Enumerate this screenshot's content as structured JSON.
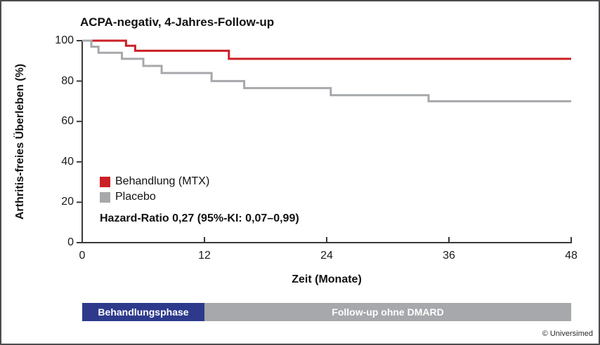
{
  "chart_data": {
    "type": "line",
    "subtype": "kaplan-meier-step",
    "title": "ACPA-negativ, 4-Jahres-Follow-up",
    "xlabel": "Zeit (Monate)",
    "ylabel": "Arthritis-freies Überleben (%)",
    "xlim": [
      0,
      48
    ],
    "ylim": [
      0,
      100
    ],
    "xticks": [
      0,
      12,
      24,
      36,
      48
    ],
    "yticks": [
      0,
      20,
      40,
      60,
      80,
      100
    ],
    "grid": false,
    "legend_position": "inside-left",
    "series": [
      {
        "name": "Behandlung (MTX)",
        "color": "#cb2026",
        "points": [
          [
            0,
            100
          ],
          [
            4.3,
            97.5
          ],
          [
            5.2,
            95
          ],
          [
            14.4,
            91
          ],
          [
            48,
            91
          ]
        ]
      },
      {
        "name": "Placebo",
        "color": "#a6a8ab",
        "points": [
          [
            0,
            100
          ],
          [
            0.9,
            97
          ],
          [
            1.6,
            94
          ],
          [
            3.9,
            91
          ],
          [
            6,
            87.5
          ],
          [
            7.8,
            84
          ],
          [
            12.7,
            80
          ],
          [
            15.9,
            76.5
          ],
          [
            24.4,
            73
          ],
          [
            34,
            70
          ],
          [
            48,
            70
          ]
        ]
      }
    ],
    "annotation": "Hazard-Ratio 0,27 (95%-KI: 0,07–0,99)"
  },
  "phase_bar": {
    "segments": [
      {
        "label": "Behandlungsphase",
        "color": "#2d3a8c",
        "start": 0,
        "end": 12
      },
      {
        "label": "Follow-up ohne DMARD",
        "color": "#a6a8ab",
        "start": 12,
        "end": 48
      }
    ]
  },
  "footer": {
    "copyright": "© Universimed"
  }
}
